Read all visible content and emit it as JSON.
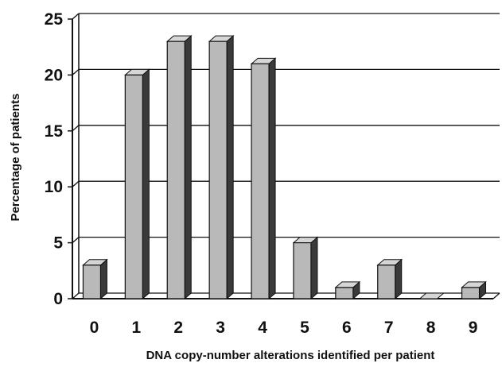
{
  "chart_data": {
    "type": "bar",
    "style": "3d",
    "title": "",
    "xlabel": "DNA copy-number alterations identified per patient",
    "ylabel": "Percentage of patients",
    "categories": [
      "0",
      "1",
      "2",
      "3",
      "4",
      "5",
      "6",
      "7",
      "8",
      "9"
    ],
    "values": [
      3,
      20,
      23,
      23,
      21,
      5,
      1,
      3,
      0,
      1
    ],
    "ylim": [
      0,
      25
    ],
    "yticks": [
      "0",
      "5",
      "10",
      "15",
      "20",
      "25"
    ],
    "grid": "horizontal",
    "legend": "none",
    "colors": {
      "bar_front": "#b9b9b9",
      "bar_side": "#3a3a3a",
      "bar_top": "#d6d6d6",
      "outline": "#111111",
      "gridline": "#111111"
    }
  }
}
